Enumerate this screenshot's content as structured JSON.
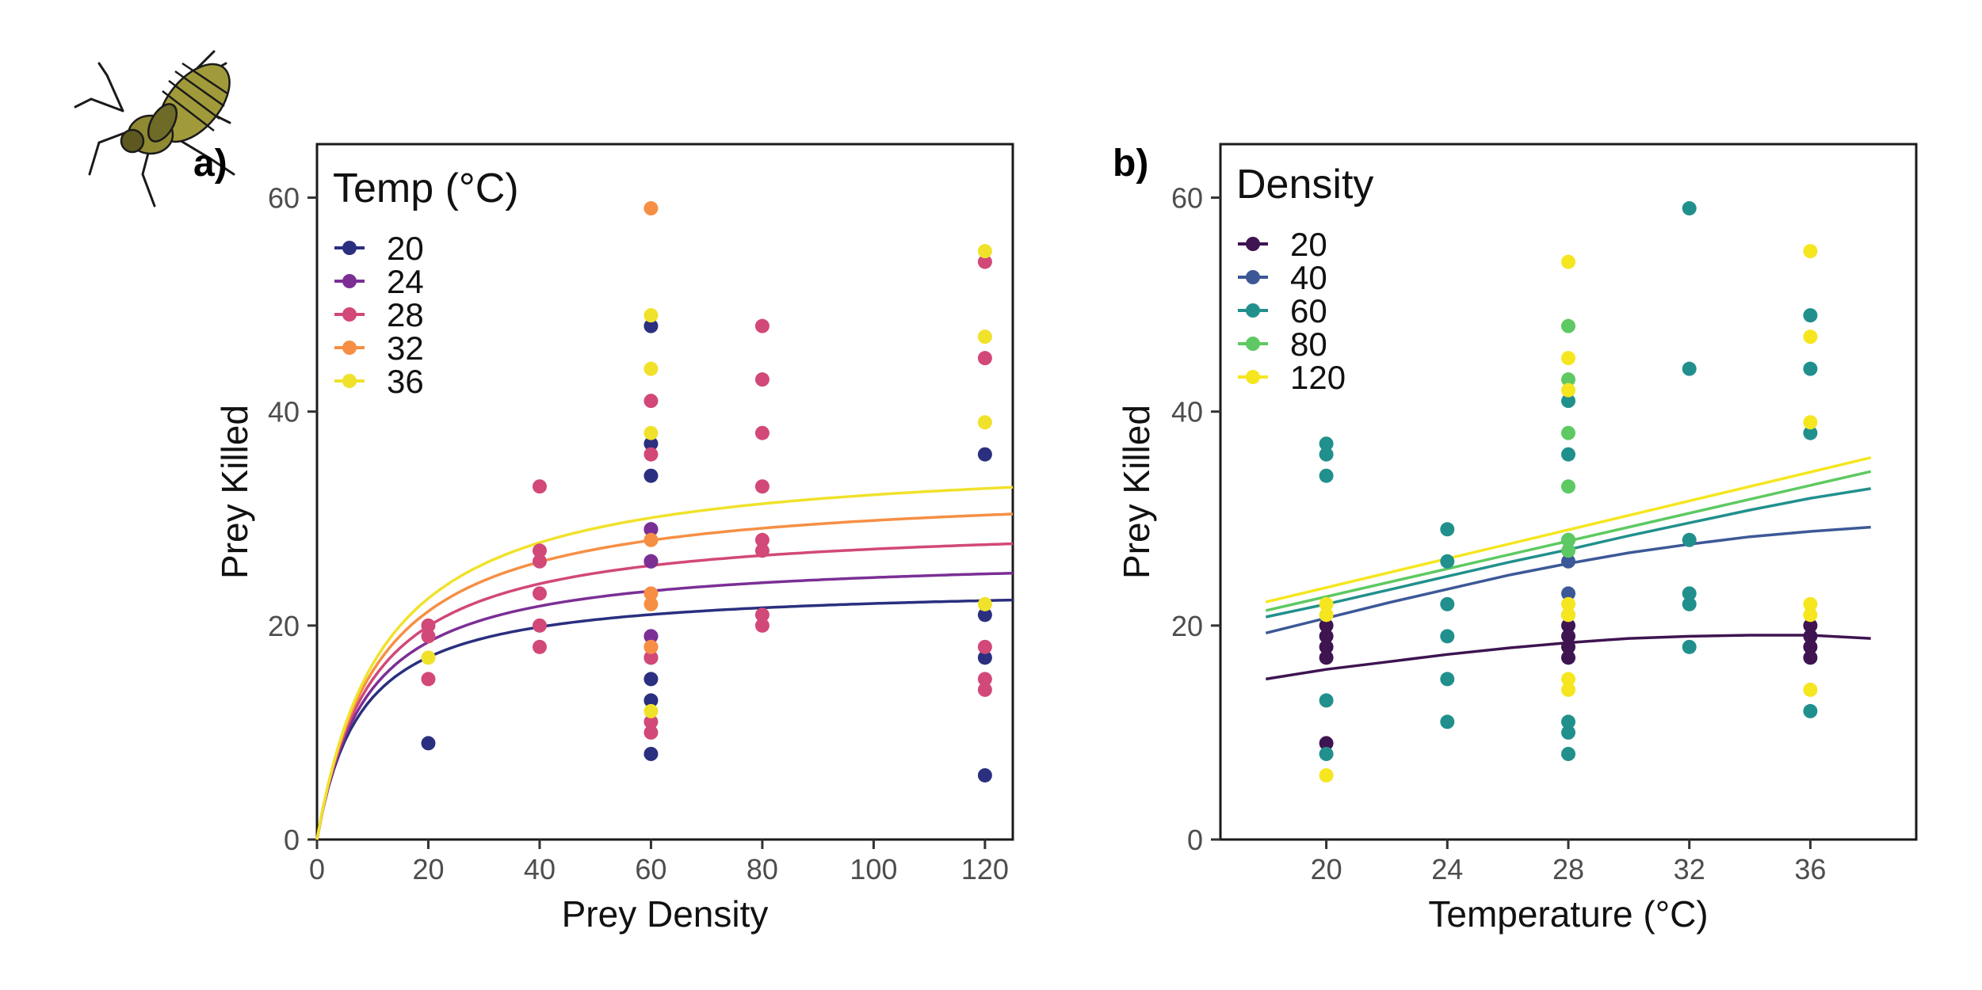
{
  "panel_labels": {
    "a": "a)",
    "b": "b)"
  },
  "icon": {
    "name": "nymph-insect-icon",
    "body_color": "#a09a3a"
  },
  "chart_data": [
    {
      "type": "scatter",
      "panel": "a)",
      "xlabel": "Prey Density",
      "ylabel": "Prey Killed",
      "xlim": [
        0,
        125
      ],
      "ylim": [
        0,
        65
      ],
      "xticks": [
        0,
        20,
        40,
        60,
        80,
        100,
        120
      ],
      "yticks": [
        0,
        20,
        40,
        60
      ],
      "legend_title": "Temp (°C)",
      "legend_position": "top-left",
      "grid": false,
      "series": [
        {
          "name": "20",
          "color": "#2a2f7f",
          "points": [
            [
              20,
              9
            ],
            [
              60,
              48
            ],
            [
              60,
              37
            ],
            [
              60,
              34
            ],
            [
              60,
              29
            ],
            [
              60,
              26
            ],
            [
              60,
              19
            ],
            [
              60,
              15
            ],
            [
              60,
              13
            ],
            [
              60,
              8
            ],
            [
              120,
              36
            ],
            [
              120,
              21
            ],
            [
              120,
              17
            ],
            [
              120,
              6
            ]
          ],
          "curve": {
            "a": 3.0,
            "h": 0.042
          }
        },
        {
          "name": "24",
          "color": "#7b2f95",
          "points": [
            [
              60,
              29
            ],
            [
              60,
              26
            ],
            [
              60,
              19
            ],
            [
              60,
              17
            ]
          ],
          "curve": {
            "a": 3.0,
            "h": 0.0375
          }
        },
        {
          "name": "28",
          "color": "#d24878",
          "points": [
            [
              20,
              20
            ],
            [
              20,
              19
            ],
            [
              20,
              15
            ],
            [
              40,
              33
            ],
            [
              40,
              27
            ],
            [
              40,
              26
            ],
            [
              40,
              23
            ],
            [
              40,
              20
            ],
            [
              40,
              18
            ],
            [
              60,
              41
            ],
            [
              60,
              36
            ],
            [
              60,
              18
            ],
            [
              60,
              17
            ],
            [
              60,
              11
            ],
            [
              60,
              10
            ],
            [
              80,
              48
            ],
            [
              80,
              43
            ],
            [
              80,
              38
            ],
            [
              80,
              33
            ],
            [
              80,
              28
            ],
            [
              80,
              27
            ],
            [
              80,
              21
            ],
            [
              80,
              20
            ],
            [
              120,
              54
            ],
            [
              120,
              45
            ],
            [
              120,
              18
            ],
            [
              120,
              15
            ],
            [
              120,
              14
            ]
          ],
          "curve": {
            "a": 3.0,
            "h": 0.0335
          }
        },
        {
          "name": "32",
          "color": "#f68f44",
          "points": [
            [
              60,
              59
            ],
            [
              60,
              28
            ],
            [
              60,
              23
            ],
            [
              60,
              22
            ],
            [
              60,
              18
            ]
          ],
          "curve": {
            "a": 3.0,
            "h": 0.0302
          }
        },
        {
          "name": "36",
          "color": "#f0e22b",
          "points": [
            [
              20,
              17
            ],
            [
              60,
              49
            ],
            [
              60,
              44
            ],
            [
              60,
              38
            ],
            [
              60,
              12
            ],
            [
              120,
              55
            ],
            [
              120,
              47
            ],
            [
              120,
              39
            ],
            [
              120,
              22
            ]
          ],
          "curve": {
            "a": 3.0,
            "h": 0.0277
          }
        }
      ]
    },
    {
      "type": "scatter",
      "panel": "b)",
      "xlabel": "Temperature (°C)",
      "ylabel": "Prey Killed",
      "xlim": [
        16.5,
        39.5
      ],
      "ylim": [
        0,
        65
      ],
      "xticks": [
        20,
        24,
        28,
        32,
        36
      ],
      "yticks": [
        0,
        20,
        40,
        60
      ],
      "legend_title": "Density",
      "legend_position": "top-left",
      "grid": false,
      "series": [
        {
          "name": "20",
          "color": "#3e1451",
          "points": [
            [
              20,
              20
            ],
            [
              20,
              19
            ],
            [
              20,
              18
            ],
            [
              20,
              17
            ],
            [
              20,
              9
            ],
            [
              28,
              20
            ],
            [
              28,
              19
            ],
            [
              28,
              18
            ],
            [
              28,
              17
            ],
            [
              36,
              20
            ],
            [
              36,
              19
            ],
            [
              36,
              18
            ],
            [
              36,
              17
            ]
          ],
          "curve": [
            [
              18,
              15.0
            ],
            [
              20,
              15.9
            ],
            [
              22,
              16.6
            ],
            [
              24,
              17.3
            ],
            [
              26,
              17.9
            ],
            [
              28,
              18.4
            ],
            [
              30,
              18.8
            ],
            [
              32,
              19.0
            ],
            [
              34,
              19.1
            ],
            [
              36,
              19.1
            ],
            [
              38,
              18.8
            ]
          ]
        },
        {
          "name": "40",
          "color": "#3c5897",
          "points": [
            [
              28,
              26
            ],
            [
              28,
              23
            ]
          ],
          "curve": [
            [
              18,
              19.3
            ],
            [
              20,
              20.7
            ],
            [
              22,
              22.1
            ],
            [
              24,
              23.4
            ],
            [
              26,
              24.7
            ],
            [
              28,
              25.8
            ],
            [
              30,
              26.8
            ],
            [
              32,
              27.6
            ],
            [
              34,
              28.3
            ],
            [
              36,
              28.8
            ],
            [
              38,
              29.2
            ]
          ]
        },
        {
          "name": "60",
          "color": "#21908d",
          "points": [
            [
              20,
              37
            ],
            [
              20,
              36
            ],
            [
              20,
              34
            ],
            [
              20,
              13
            ],
            [
              20,
              8
            ],
            [
              24,
              29
            ],
            [
              24,
              26
            ],
            [
              24,
              22
            ],
            [
              24,
              19
            ],
            [
              24,
              15
            ],
            [
              24,
              11
            ],
            [
              28,
              41
            ],
            [
              28,
              36
            ],
            [
              28,
              28
            ],
            [
              28,
              11
            ],
            [
              28,
              10
            ],
            [
              28,
              8
            ],
            [
              32,
              59
            ],
            [
              32,
              44
            ],
            [
              32,
              28
            ],
            [
              32,
              23
            ],
            [
              32,
              22
            ],
            [
              32,
              18
            ],
            [
              36,
              49
            ],
            [
              36,
              44
            ],
            [
              36,
              38
            ],
            [
              36,
              12
            ]
          ],
          "curve": [
            [
              18,
              20.8
            ],
            [
              20,
              22.0
            ],
            [
              22,
              23.3
            ],
            [
              24,
              24.6
            ],
            [
              26,
              25.9
            ],
            [
              28,
              27.1
            ],
            [
              30,
              28.4
            ],
            [
              32,
              29.6
            ],
            [
              34,
              30.8
            ],
            [
              36,
              31.9
            ],
            [
              38,
              32.8
            ]
          ]
        },
        {
          "name": "80",
          "color": "#5ec962",
          "points": [
            [
              28,
              48
            ],
            [
              28,
              43
            ],
            [
              28,
              38
            ],
            [
              28,
              33
            ],
            [
              28,
              28
            ],
            [
              28,
              27
            ],
            [
              28,
              21
            ]
          ],
          "curve": [
            [
              18,
              21.4
            ],
            [
              38,
              34.4
            ]
          ]
        },
        {
          "name": "120",
          "color": "#f5e61f",
          "points": [
            [
              20,
              22
            ],
            [
              20,
              21
            ],
            [
              20,
              6
            ],
            [
              28,
              54
            ],
            [
              28,
              45
            ],
            [
              28,
              42
            ],
            [
              28,
              22
            ],
            [
              28,
              21
            ],
            [
              28,
              15
            ],
            [
              28,
              14
            ],
            [
              36,
              55
            ],
            [
              36,
              47
            ],
            [
              36,
              39
            ],
            [
              36,
              22
            ],
            [
              36,
              21
            ],
            [
              36,
              14
            ]
          ],
          "curve": [
            [
              18,
              22.2
            ],
            [
              38,
              35.7
            ]
          ]
        }
      ]
    }
  ]
}
